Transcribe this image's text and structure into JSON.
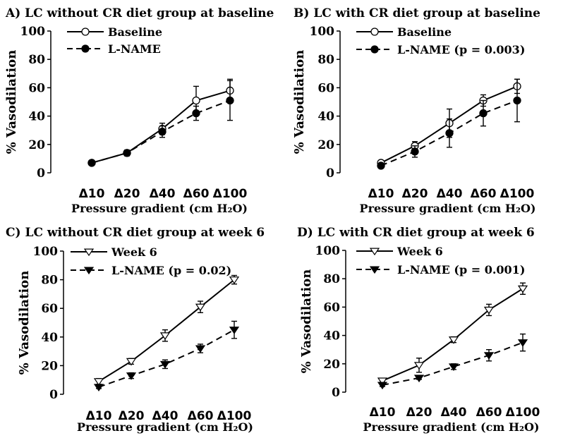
{
  "chart_data": [
    {
      "type": "line",
      "title": "A) LC without CR diet group at baseline",
      "xlabel": "Pressure gradient (cm H₂O)",
      "ylabel": "% Vasodilation",
      "ylim": [
        0,
        100
      ],
      "yticks": [
        "0",
        "20",
        "40",
        "60",
        "80",
        "100"
      ],
      "categories": [
        "Δ10",
        "Δ20",
        "Δ40",
        "Δ60",
        "Δ100"
      ],
      "legend_position": "top-left",
      "series": [
        {
          "name": "Baseline",
          "style": "solid",
          "marker": "open-circle",
          "values": [
            7,
            14,
            31,
            51,
            58
          ],
          "errors": [
            1,
            2,
            4,
            10,
            8
          ]
        },
        {
          "name": "L-NAME",
          "style": "dashed",
          "marker": "filled-circle",
          "values": [
            7,
            14,
            29,
            42,
            51
          ],
          "errors": [
            1,
            2,
            4,
            5,
            14
          ]
        }
      ]
    },
    {
      "type": "line",
      "title": "B) LC with CR diet group at baseline",
      "xlabel": "Pressure gradient (cm H₂O)",
      "ylabel": "% Vasodilation",
      "ylim": [
        0,
        100
      ],
      "yticks": [
        "0",
        "20",
        "40",
        "60",
        "80",
        "100"
      ],
      "categories": [
        "Δ10",
        "Δ20",
        "Δ40",
        "Δ60",
        "Δ100"
      ],
      "legend_position": "top-left",
      "series": [
        {
          "name": "Baseline",
          "style": "solid",
          "marker": "open-circle",
          "values": [
            7,
            19,
            35,
            51,
            61
          ],
          "errors": [
            1,
            3,
            10,
            4,
            5
          ]
        },
        {
          "name": "L-NAME (p = 0.003)",
          "style": "dashed",
          "marker": "filled-circle",
          "values": [
            5,
            15,
            28,
            42,
            51
          ],
          "errors": [
            1,
            4,
            10,
            9,
            15
          ]
        }
      ]
    },
    {
      "type": "line",
      "title": "C) LC without CR diet group at week 6",
      "xlabel": "Pressure gradient (cm H₂O)",
      "ylabel": "% Vasodilation",
      "ylim": [
        0,
        100
      ],
      "yticks": [
        "0",
        "20",
        "40",
        "60",
        "80",
        "100"
      ],
      "categories": [
        "Δ10",
        "Δ20",
        "Δ40",
        "Δ60",
        "Δ100"
      ],
      "legend_position": "top-left",
      "series": [
        {
          "name": "Week 6",
          "style": "solid",
          "marker": "open-triangle-down",
          "values": [
            9,
            23,
            41,
            61,
            80
          ],
          "errors": [
            2,
            2,
            4,
            4,
            3
          ]
        },
        {
          "name": "L-NAME (p = 0.02)",
          "style": "dashed",
          "marker": "filled-triangle-down",
          "values": [
            5,
            13,
            21,
            32,
            45
          ],
          "errors": [
            1,
            2,
            3,
            3,
            6
          ]
        }
      ]
    },
    {
      "type": "line",
      "title": "D) LC with CR diet group at week 6",
      "xlabel": "Pressure gradient (cm H₂O)",
      "ylabel": "% Vasodilation",
      "ylim": [
        0,
        100
      ],
      "yticks": [
        "0",
        "20",
        "40",
        "60",
        "80",
        "100"
      ],
      "categories": [
        "Δ10",
        "Δ20",
        "Δ40",
        "Δ60",
        "Δ100"
      ],
      "legend_position": "top-left",
      "series": [
        {
          "name": "Week 6",
          "style": "solid",
          "marker": "open-triangle-down",
          "values": [
            8,
            19,
            37,
            58,
            73
          ],
          "errors": [
            1,
            5,
            2,
            4,
            4
          ]
        },
        {
          "name": "L-NAME (p = 0.001)",
          "style": "dashed",
          "marker": "filled-triangle-down",
          "values": [
            5,
            10,
            18,
            26,
            35
          ],
          "errors": [
            1,
            1,
            2,
            4,
            6
          ]
        }
      ]
    }
  ]
}
